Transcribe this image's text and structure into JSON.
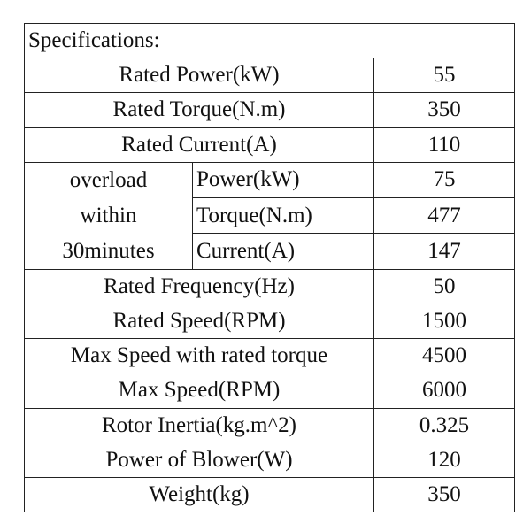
{
  "title": "Specifications:",
  "rows": [
    {
      "label": "Rated Power(kW)",
      "value": "55"
    },
    {
      "label": "Rated Torque(N.m)",
      "value": "350"
    },
    {
      "label": "Rated Current(A)",
      "value": "110"
    }
  ],
  "overload": {
    "label_lines": [
      "overload",
      "within",
      "30minutes"
    ],
    "rows": [
      {
        "label": "Power(kW)",
        "value": "75"
      },
      {
        "label": "Torque(N.m)",
        "value": "477"
      },
      {
        "label": "Current(A)",
        "value": "147"
      }
    ]
  },
  "rows2": [
    {
      "label": "Rated Frequency(Hz)",
      "value": "50"
    },
    {
      "label": "Rated Speed(RPM)",
      "value": "1500"
    },
    {
      "label": "Max Speed with rated torque",
      "value": "4500"
    },
    {
      "label": "Max Speed(RPM)",
      "value": "6000"
    },
    {
      "label": "Rotor Inertia(kg.m^2)",
      "value": "0.325"
    },
    {
      "label": "Power of Blower(W)",
      "value": "120"
    },
    {
      "label": "Weight(kg)",
      "value": "350"
    }
  ]
}
